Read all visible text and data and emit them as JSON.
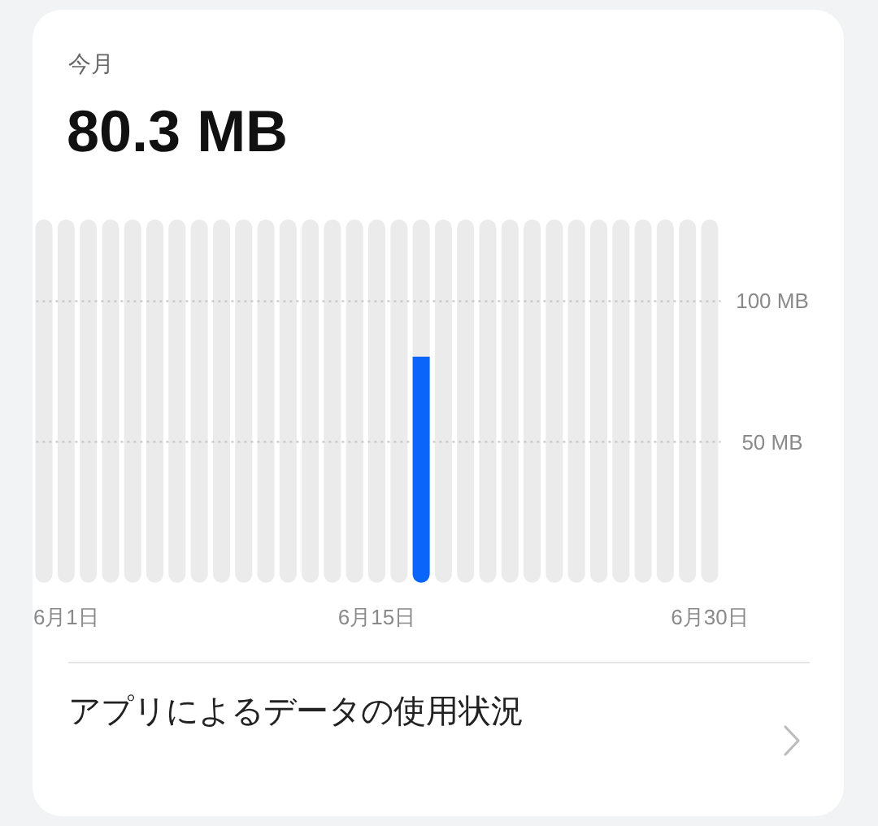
{
  "chart_data": {
    "type": "bar",
    "title": "今月",
    "subtitle": "80.3 MB",
    "categories": [
      null,
      "6月1日",
      null,
      null,
      null,
      null,
      null,
      null,
      null,
      null,
      null,
      null,
      null,
      null,
      null,
      "6月15日",
      null,
      null,
      null,
      null,
      null,
      null,
      null,
      null,
      null,
      null,
      null,
      null,
      null,
      null,
      "6月30日"
    ],
    "values": [
      null,
      null,
      null,
      null,
      null,
      null,
      null,
      null,
      null,
      null,
      null,
      null,
      null,
      null,
      null,
      null,
      null,
      80.3,
      null,
      null,
      null,
      null,
      null,
      null,
      null,
      null,
      null,
      null,
      null,
      null,
      null
    ],
    "color": "#0a66fb",
    "ylim": [
      0,
      129
    ],
    "yticks": [
      {
        "value": 50,
        "label": "50 MB"
      },
      {
        "value": 100,
        "label": "100 MB"
      }
    ],
    "grid": "y",
    "annotations": [
      "アプリによるデータの使用状況"
    ]
  }
}
